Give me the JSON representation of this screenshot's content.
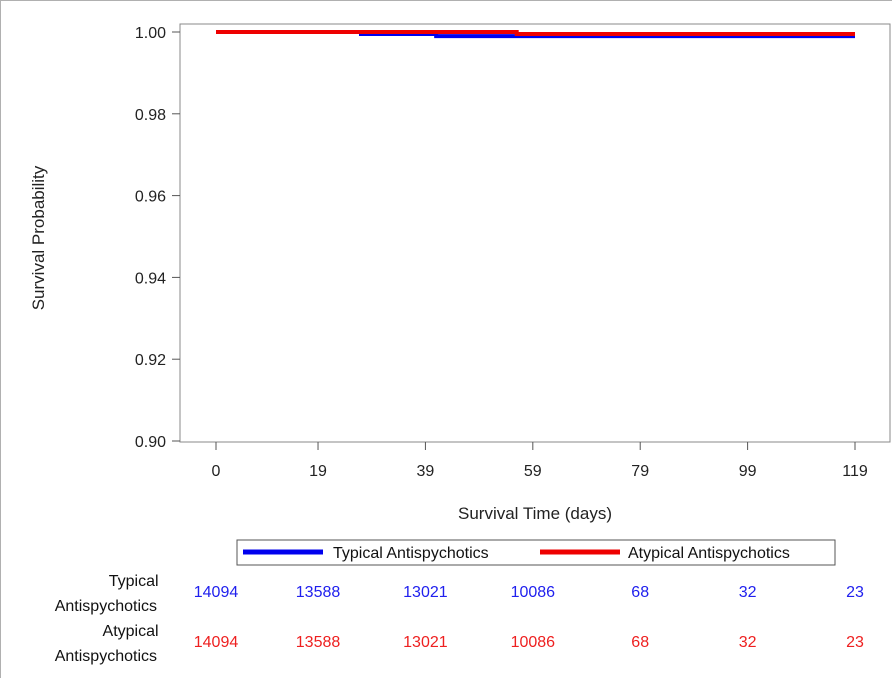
{
  "chart_data": {
    "type": "line",
    "xlabel": "Survival Time (days)",
    "ylabel": "Survival Probability",
    "xlim": [
      0,
      121
    ],
    "ylim": [
      0.9,
      1.0
    ],
    "x_ticks": [
      0,
      19,
      39,
      59,
      79,
      99,
      119
    ],
    "x_tick_labels": [
      "0",
      "19",
      "39",
      "59",
      "79",
      "99",
      "119"
    ],
    "y_ticks": [
      0.9,
      0.92,
      0.94,
      0.96,
      0.98,
      1.0
    ],
    "y_tick_labels": [
      "0.90",
      "0.92",
      "0.94",
      "0.96",
      "0.98",
      "1.00"
    ],
    "grid": false,
    "legend_position": "bottom",
    "series": [
      {
        "name": "Typical Antispychotics",
        "color": "#0000ee",
        "steps": [
          [
            0,
            1.0
          ],
          [
            27,
            0.9995
          ],
          [
            41,
            0.999
          ],
          [
            56,
            0.999
          ],
          [
            119,
            0.999
          ]
        ]
      },
      {
        "name": "Atypical Antispychotics",
        "color": "#ee0000",
        "steps": [
          [
            0,
            1.0
          ],
          [
            56,
            0.9995
          ],
          [
            119,
            0.9995
          ]
        ]
      }
    ],
    "risk_table": {
      "rows": [
        {
          "label_lines": [
            "Typical",
            "Antispychotics"
          ],
          "color": "#2020ee",
          "values": [
            "14094",
            "13588",
            "13021",
            "10086",
            "68",
            "32",
            "23"
          ]
        },
        {
          "label_lines": [
            "Atypical",
            "Antispychotics"
          ],
          "color": "#ee2020",
          "values": [
            "14094",
            "13588",
            "13021",
            "10086",
            "68",
            "32",
            "23"
          ]
        }
      ]
    }
  }
}
